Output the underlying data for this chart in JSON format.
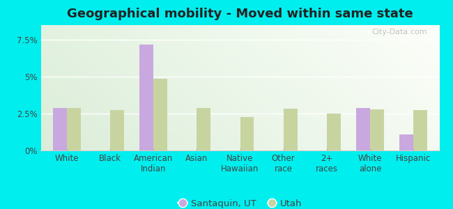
{
  "title": "Geographical mobility - Moved within same state",
  "categories": [
    "White",
    "Black",
    "American\nIndian",
    "Asian",
    "Native\nHawaiian",
    "Other\nrace",
    "2+\nraces",
    "White\nalone",
    "Hispanic"
  ],
  "santaquin_values": [
    2.9,
    0,
    7.2,
    0,
    0,
    0,
    0,
    2.9,
    1.1
  ],
  "utah_values": [
    2.9,
    2.75,
    4.85,
    2.9,
    2.25,
    2.85,
    2.5,
    2.8,
    2.75
  ],
  "santaquin_color": "#c9a8e0",
  "utah_color": "#c8d4a0",
  "outer_bg": "#00eeee",
  "yticks": [
    0,
    2.5,
    5.0,
    7.5
  ],
  "ytick_labels": [
    "0%",
    "2.5%",
    "5%",
    "7.5%"
  ],
  "ylim": [
    0,
    8.5
  ],
  "legend_santaquin": "Santaquin, UT",
  "legend_utah": "Utah",
  "watermark": "City-Data.com",
  "bar_width": 0.32,
  "title_fontsize": 13,
  "tick_fontsize": 8.5,
  "legend_fontsize": 9.5
}
